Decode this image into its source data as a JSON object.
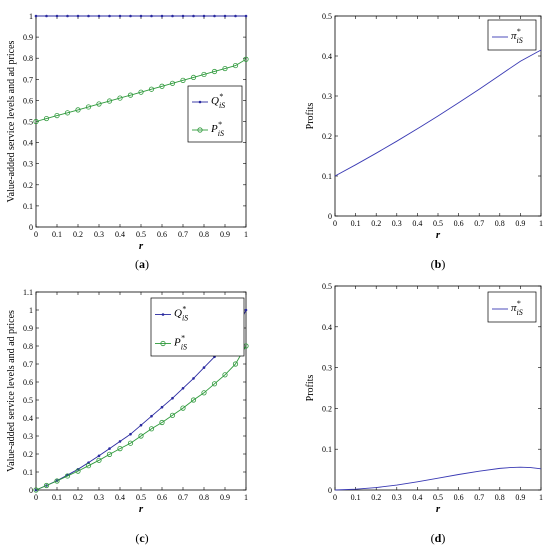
{
  "colors": {
    "q_series": "#2a2aa0",
    "p_series": "#2f9a3c",
    "pi_series": "#3a3ab4",
    "axis": "#000000"
  },
  "chart_data": [
    {
      "id": "a",
      "type": "line",
      "caption": "(a)",
      "xlabel": "r",
      "ylabel": "Value-added service levels and ad prices",
      "xlim": [
        0,
        1
      ],
      "ylim": [
        0,
        1
      ],
      "xticks": [
        "0",
        "0.1",
        "0.2",
        "0.3",
        "0.4",
        "0.5",
        "0.6",
        "0.7",
        "0.8",
        "0.9",
        "1"
      ],
      "yticks": [
        "0",
        "0.1",
        "0.2",
        "0.3",
        "0.4",
        "0.5",
        "0.6",
        "0.7",
        "0.8",
        "0.9",
        "1"
      ],
      "legend": {
        "position": "center-right",
        "entries": [
          {
            "main": "Q",
            "sub": "iS",
            "sup": "*"
          },
          {
            "main": "P",
            "sub": "iS",
            "sup": "*"
          }
        ]
      },
      "x": [
        0,
        0.05,
        0.1,
        0.15,
        0.2,
        0.25,
        0.3,
        0.35,
        0.4,
        0.45,
        0.5,
        0.55,
        0.6,
        0.65,
        0.7,
        0.75,
        0.8,
        0.85,
        0.9,
        0.95,
        1
      ],
      "series": [
        {
          "marker": "dot",
          "color": "#2a2aa0",
          "values": [
            1,
            1,
            1,
            1,
            1,
            1,
            1,
            1,
            1,
            1,
            1,
            1,
            1,
            1,
            1,
            1,
            1,
            1,
            1,
            1,
            1
          ]
        },
        {
          "marker": "circle",
          "color": "#2f9a3c",
          "values": [
            0.5,
            0.514,
            0.528,
            0.541,
            0.555,
            0.569,
            0.583,
            0.597,
            0.611,
            0.625,
            0.639,
            0.653,
            0.667,
            0.681,
            0.695,
            0.709,
            0.723,
            0.737,
            0.751,
            0.765,
            0.795
          ]
        }
      ]
    },
    {
      "id": "b",
      "type": "line",
      "caption": "(b)",
      "xlabel": "r",
      "ylabel": "Profits",
      "xlim": [
        0,
        1
      ],
      "ylim": [
        0,
        0.5
      ],
      "xticks": [
        "0",
        "0.1",
        "0.2",
        "0.3",
        "0.4",
        "0.5",
        "0.6",
        "0.7",
        "0.8",
        "0.9",
        "1"
      ],
      "yticks": [
        "0",
        "0.1",
        "0.2",
        "0.3",
        "0.4",
        "0.5"
      ],
      "legend": {
        "position": "top-right",
        "entries": [
          {
            "main": "π",
            "sub": "iS",
            "sup": "*"
          }
        ]
      },
      "x": [
        0,
        0.1,
        0.2,
        0.3,
        0.4,
        0.5,
        0.6,
        0.7,
        0.8,
        0.9,
        1
      ],
      "series": [
        {
          "marker": "none",
          "color": "#3a3ab4",
          "values": [
            0.1,
            0.128,
            0.157,
            0.187,
            0.218,
            0.25,
            0.283,
            0.317,
            0.352,
            0.387,
            0.415
          ]
        }
      ]
    },
    {
      "id": "c",
      "type": "line",
      "caption": "(c)",
      "xlabel": "r",
      "ylabel": "Value-added service levels and ad prices",
      "xlim": [
        0,
        1
      ],
      "ylim": [
        0,
        1.1
      ],
      "xticks": [
        "0",
        "0.1",
        "0.2",
        "0.3",
        "0.4",
        "0.5",
        "0.6",
        "0.7",
        "0.8",
        "0.9",
        "1"
      ],
      "yticks": [
        "0",
        "0.1",
        "0.2",
        "0.3",
        "0.4",
        "0.5",
        "0.6",
        "0.7",
        "0.8",
        "0.9",
        "1",
        "1.1"
      ],
      "legend": {
        "position": "top-right",
        "entries": [
          {
            "main": "Q",
            "sub": "iS",
            "sup": "*"
          },
          {
            "main": "P",
            "sub": "iS",
            "sup": "*"
          }
        ]
      },
      "x": [
        0,
        0.05,
        0.1,
        0.15,
        0.2,
        0.25,
        0.3,
        0.35,
        0.4,
        0.45,
        0.5,
        0.55,
        0.6,
        0.65,
        0.7,
        0.75,
        0.8,
        0.85,
        0.9,
        0.95,
        1
      ],
      "series": [
        {
          "marker": "dot",
          "color": "#2a2aa0",
          "values": [
            0,
            0.025,
            0.052,
            0.083,
            0.115,
            0.152,
            0.19,
            0.23,
            0.27,
            0.31,
            0.36,
            0.41,
            0.46,
            0.51,
            0.565,
            0.62,
            0.68,
            0.74,
            0.81,
            0.88,
            1.0
          ]
        },
        {
          "marker": "circle",
          "color": "#2f9a3c",
          "values": [
            0,
            0.025,
            0.05,
            0.078,
            0.105,
            0.135,
            0.165,
            0.198,
            0.23,
            0.26,
            0.3,
            0.34,
            0.375,
            0.415,
            0.455,
            0.5,
            0.54,
            0.59,
            0.64,
            0.7,
            0.8
          ]
        }
      ]
    },
    {
      "id": "d",
      "type": "line",
      "caption": "(d)",
      "xlabel": "r",
      "ylabel": "Profits",
      "xlim": [
        0,
        1
      ],
      "ylim": [
        0,
        0.5
      ],
      "xticks": [
        "0",
        "0.1",
        "0.2",
        "0.3",
        "0.4",
        "0.5",
        "0.6",
        "0.7",
        "0.8",
        "0.9",
        "1"
      ],
      "yticks": [
        "0",
        "0.1",
        "0.2",
        "0.3",
        "0.4",
        "0.5"
      ],
      "legend": {
        "position": "top-right",
        "entries": [
          {
            "main": "π",
            "sub": "iS",
            "sup": "*"
          }
        ]
      },
      "x": [
        0,
        0.1,
        0.2,
        0.3,
        0.4,
        0.5,
        0.6,
        0.7,
        0.8,
        0.85,
        0.9,
        0.95,
        1
      ],
      "series": [
        {
          "marker": "none",
          "color": "#3a3ab4",
          "values": [
            0,
            0.002,
            0.006,
            0.012,
            0.02,
            0.029,
            0.038,
            0.046,
            0.053,
            0.055,
            0.056,
            0.055,
            0.052
          ]
        }
      ]
    }
  ]
}
